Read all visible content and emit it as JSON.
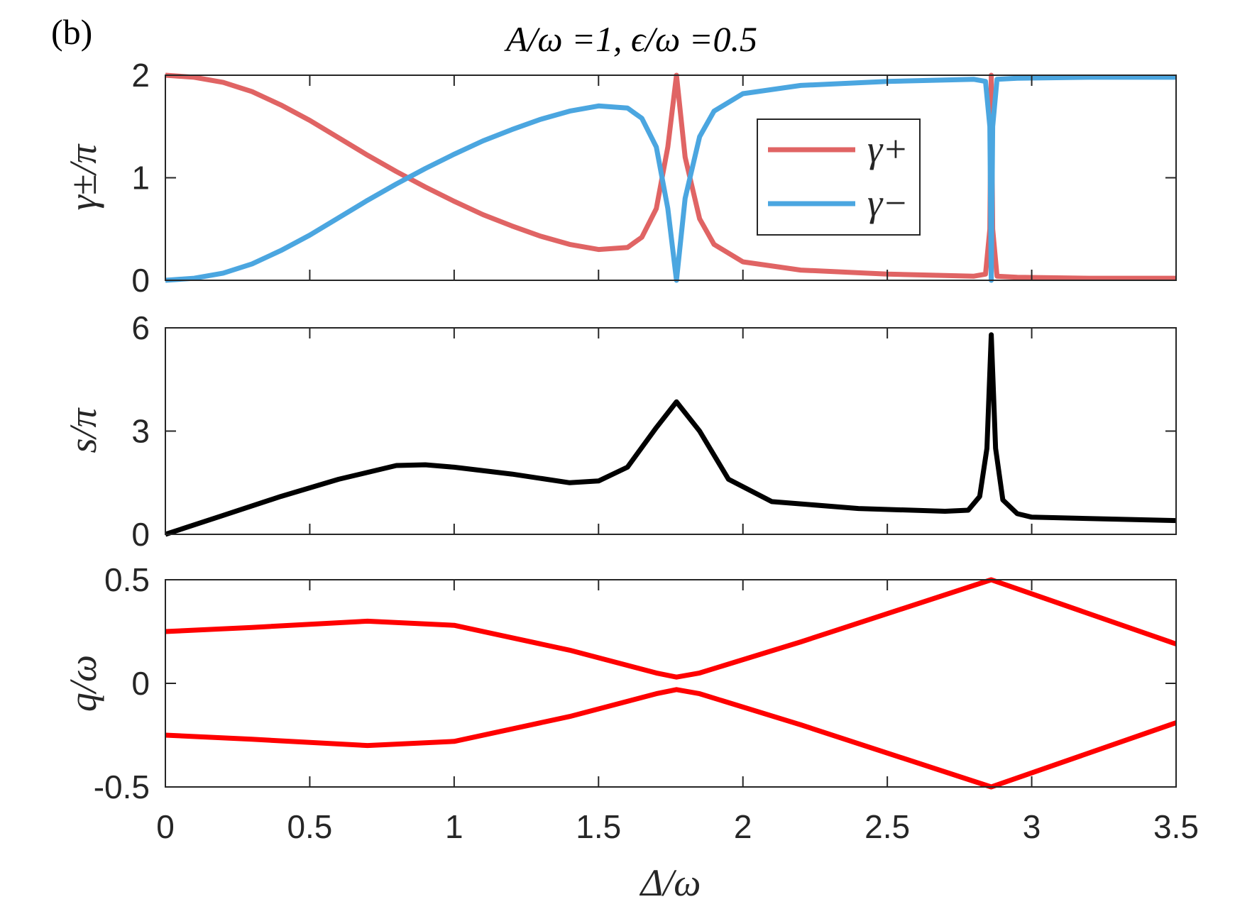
{
  "panel_label": "(b)",
  "chart_data": [
    {
      "type": "line",
      "title": "A/ω =1, ϵ/ω =0.5",
      "ylabel": "γ±/π",
      "xlim": [
        0,
        3.5
      ],
      "ylim": [
        0,
        2
      ],
      "yticks": [
        "0",
        "1",
        "2"
      ],
      "legend": {
        "placement": "top-right-inset",
        "entries": [
          "γ+",
          "γ−"
        ]
      },
      "x": [
        0,
        0.1,
        0.2,
        0.3,
        0.4,
        0.5,
        0.6,
        0.7,
        0.8,
        0.9,
        1.0,
        1.1,
        1.2,
        1.3,
        1.4,
        1.5,
        1.6,
        1.65,
        1.7,
        1.74,
        1.77,
        1.8,
        1.85,
        1.9,
        2.0,
        2.2,
        2.5,
        2.8,
        2.84,
        2.855,
        2.86,
        2.865,
        2.88,
        2.95,
        3.2,
        3.5
      ],
      "series": [
        {
          "name": "γ+",
          "color": "#e06464",
          "values": [
            2,
            1.98,
            1.93,
            1.84,
            1.71,
            1.56,
            1.39,
            1.22,
            1.06,
            0.91,
            0.77,
            0.64,
            0.53,
            0.43,
            0.35,
            0.3,
            0.32,
            0.42,
            0.7,
            1.3,
            2,
            1.2,
            0.6,
            0.35,
            0.18,
            0.1,
            0.06,
            0.04,
            0.06,
            0.5,
            2,
            0.5,
            0.04,
            0.03,
            0.02,
            0.02
          ]
        },
        {
          "name": "γ−",
          "color": "#4ba6e0",
          "values": [
            0,
            0.02,
            0.07,
            0.16,
            0.29,
            0.44,
            0.61,
            0.78,
            0.94,
            1.09,
            1.23,
            1.36,
            1.47,
            1.57,
            1.65,
            1.7,
            1.68,
            1.58,
            1.3,
            0.7,
            0,
            0.8,
            1.4,
            1.65,
            1.82,
            1.9,
            1.94,
            1.96,
            1.94,
            1.5,
            0,
            1.5,
            1.96,
            1.97,
            1.98,
            1.98
          ]
        }
      ]
    },
    {
      "type": "line",
      "ylabel": "s/π",
      "xlim": [
        0,
        3.5
      ],
      "ylim": [
        0,
        6
      ],
      "yticks": [
        "0",
        "3",
        "6"
      ],
      "x": [
        0,
        0.2,
        0.4,
        0.6,
        0.8,
        0.9,
        1.0,
        1.2,
        1.4,
        1.5,
        1.6,
        1.7,
        1.77,
        1.85,
        1.95,
        2.1,
        2.4,
        2.7,
        2.78,
        2.82,
        2.845,
        2.86,
        2.875,
        2.9,
        2.95,
        3.0,
        3.5
      ],
      "series": [
        {
          "name": "s",
          "color": "#000000",
          "values": [
            0,
            0.55,
            1.1,
            1.6,
            2.0,
            2.02,
            1.95,
            1.75,
            1.5,
            1.55,
            1.95,
            3.1,
            3.85,
            3.0,
            1.6,
            0.95,
            0.75,
            0.67,
            0.7,
            1.1,
            2.5,
            5.8,
            2.5,
            1.0,
            0.6,
            0.5,
            0.4
          ]
        }
      ]
    },
    {
      "type": "line",
      "ylabel": "q/ω",
      "xlabel": "Δ/ω",
      "xlim": [
        0,
        3.5
      ],
      "ylim": [
        -0.5,
        0.5
      ],
      "yticks": [
        "-0.5",
        "0",
        "0.5"
      ],
      "xticks": [
        "0",
        "0.5",
        "1",
        "1.5",
        "2",
        "2.5",
        "3",
        "3.5"
      ],
      "x": [
        0,
        0.3,
        0.7,
        1.0,
        1.4,
        1.7,
        1.77,
        1.85,
        2.2,
        2.86,
        3.5
      ],
      "series": [
        {
          "name": "q upper",
          "color": "#ff0000",
          "values": [
            0.25,
            0.27,
            0.3,
            0.28,
            0.16,
            0.05,
            0.03,
            0.05,
            0.2,
            0.5,
            0.19
          ]
        },
        {
          "name": "q lower",
          "color": "#ff0000",
          "values": [
            -0.25,
            -0.27,
            -0.3,
            -0.28,
            -0.16,
            -0.05,
            -0.03,
            -0.05,
            -0.2,
            -0.5,
            -0.19
          ]
        }
      ]
    }
  ]
}
